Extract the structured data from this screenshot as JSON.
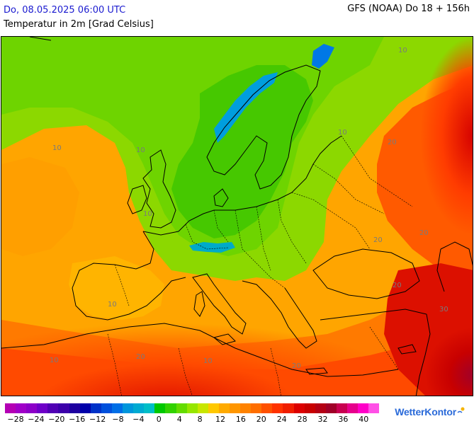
{
  "header": {
    "datetime": "Do, 08.05.2025 06:00 UTC",
    "variable": "Temperatur in 2m [Grad Celsius]",
    "model_run": "GFS (NOAA) Do 18 + 156h"
  },
  "map": {
    "contour_labels": [
      "10",
      "10",
      "10",
      "10",
      "20",
      "10",
      "10",
      "20",
      "20",
      "20",
      "10",
      "20",
      "10",
      "20",
      "30"
    ]
  },
  "legend": {
    "colors": [
      "#b400b4",
      "#a000c8",
      "#8c00c8",
      "#6e00c8",
      "#5000b4",
      "#3c00aa",
      "#1e00a0",
      "#0000aa",
      "#0032c8",
      "#0050dc",
      "#006ee6",
      "#0096dc",
      "#00aad2",
      "#00bec8",
      "#00c800",
      "#32d200",
      "#64dc00",
      "#96e600",
      "#c8e600",
      "#ffc800",
      "#ffaa00",
      "#ff9600",
      "#ff8200",
      "#ff6e00",
      "#ff5000",
      "#ff3200",
      "#f01e00",
      "#dc0000",
      "#c80000",
      "#b40014",
      "#a00028",
      "#c80050",
      "#e6008c",
      "#ff00c8",
      "#ff50e6"
    ],
    "ticks": [
      "−28",
      "−24",
      "−20",
      "−16",
      "−12",
      "−8",
      "−4",
      "0",
      "4",
      "8",
      "12",
      "16",
      "20",
      "24",
      "28",
      "32",
      "36",
      "40"
    ]
  },
  "brand": {
    "name": "WetterKontor"
  }
}
